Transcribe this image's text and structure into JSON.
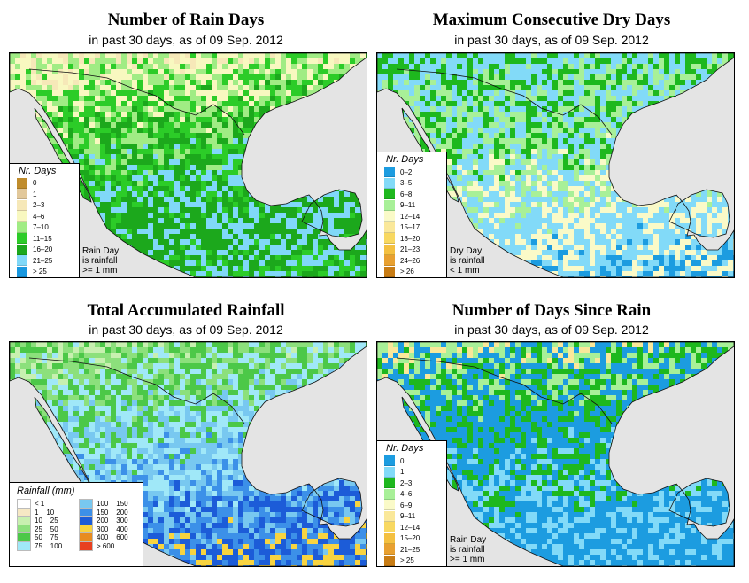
{
  "panels": [
    {
      "title": "Number of Rain Days",
      "subtitle": "in past 30 days, as of  09 Sep. 2012",
      "legend_title": "Nr. Days",
      "legend": [
        {
          "label": "0",
          "color": "#c08c2c"
        },
        {
          "label": "1",
          "color": "#e2c89a"
        },
        {
          "label": "2–3",
          "color": "#f6e8b8"
        },
        {
          "label": "4–6",
          "color": "#f8f8c0"
        },
        {
          "label": "7–10",
          "color": "#a0ec84"
        },
        {
          "label": "11–15",
          "color": "#2ccc28"
        },
        {
          "label": "16–20",
          "color": "#1ca81c"
        },
        {
          "label": "21–25",
          "color": "#80d8f8"
        },
        {
          "label": "> 25",
          "color": "#1898e0"
        }
      ],
      "note": [
        "Rain Day",
        "is rainfall",
        ">= 1 mm"
      ]
    },
    {
      "title": "Maximum Consecutive Dry Days",
      "subtitle": "in past 30 days, as of  09 Sep. 2012",
      "legend_title": "Nr. Days",
      "legend": [
        {
          "label": "0–2",
          "color": "#1c9ce0"
        },
        {
          "label": "3–5",
          "color": "#82daf8"
        },
        {
          "label": "6–8",
          "color": "#1eb81e"
        },
        {
          "label": "9–11",
          "color": "#a8f098"
        },
        {
          "label": "12–14",
          "color": "#fafac8"
        },
        {
          "label": "15–17",
          "color": "#fae89a"
        },
        {
          "label": "18–20",
          "color": "#f8d860"
        },
        {
          "label": "21–23",
          "color": "#f4c040"
        },
        {
          "label": "24–26",
          "color": "#e8a030"
        },
        {
          "label": "> 26",
          "color": "#c87c14"
        }
      ],
      "note": [
        "Dry Day",
        "is rainfall",
        "< 1 mm"
      ]
    },
    {
      "title": "Total Accumulated Rainfall",
      "subtitle": "in past 30 days, as of  09 Sep. 2012",
      "legend_title": "Rainfall (mm)",
      "legend_left": [
        {
          "label": "< 1",
          "color": "#ffffff"
        },
        {
          "label": "1    10",
          "color": "#f6e8c4"
        },
        {
          "label": "10    25",
          "color": "#c8f0b0"
        },
        {
          "label": "25    50",
          "color": "#8ce07c"
        },
        {
          "label": "50    75",
          "color": "#4cc848"
        },
        {
          "label": "75    100",
          "color": "#a0e8f8"
        }
      ],
      "legend_right": [
        {
          "label": "100    150",
          "color": "#78c8f0"
        },
        {
          "label": "150    200",
          "color": "#3c90e8"
        },
        {
          "label": "200    300",
          "color": "#1c5cd8"
        },
        {
          "label": "300    400",
          "color": "#f8d440"
        },
        {
          "label": "400    600",
          "color": "#e88c20"
        },
        {
          "label": "> 600",
          "color": "#e84020"
        }
      ]
    },
    {
      "title": "Number of Days Since Rain",
      "subtitle": "in past 30 days, as of  09 Sep. 2012",
      "legend_title": "Nr. Days",
      "legend": [
        {
          "label": "0",
          "color": "#1c9ce0"
        },
        {
          "label": "1",
          "color": "#82daf8"
        },
        {
          "label": "2–3",
          "color": "#1eb81e"
        },
        {
          "label": "4–6",
          "color": "#a8f098"
        },
        {
          "label": "6–9",
          "color": "#fafac8"
        },
        {
          "label": "9–11",
          "color": "#fae89a"
        },
        {
          "label": "12–14",
          "color": "#f8d860"
        },
        {
          "label": "15–20",
          "color": "#f4c040"
        },
        {
          "label": "21–25",
          "color": "#e8a030"
        },
        {
          "label": "> 25",
          "color": "#c87c14"
        }
      ],
      "note": [
        "Rain Day",
        "is rainfall",
        ">= 1 mm"
      ]
    }
  ]
}
